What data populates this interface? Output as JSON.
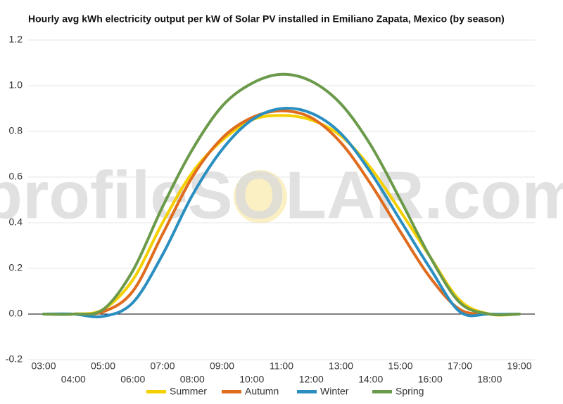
{
  "chart_data": {
    "type": "line",
    "title": "Hourly avg kWh electricity output per kW of Solar PV installed in Emiliano Zapata, Mexico (by season)",
    "watermark": "profileSOLAR.com",
    "categories": [
      "03:00",
      "04:00",
      "05:00",
      "06:00",
      "07:00",
      "08:00",
      "09:00",
      "10:00",
      "11:00",
      "12:00",
      "13:00",
      "14:00",
      "15:00",
      "16:00",
      "17:00",
      "18:00",
      "19:00"
    ],
    "series": [
      {
        "name": "Summer",
        "color": "#f5d000",
        "values": [
          0,
          0,
          0.02,
          0.15,
          0.4,
          0.62,
          0.76,
          0.85,
          0.87,
          0.85,
          0.78,
          0.64,
          0.45,
          0.25,
          0.06,
          0,
          0
        ]
      },
      {
        "name": "Autumn",
        "color": "#e06c1e",
        "values": [
          0,
          0,
          0.01,
          0.1,
          0.35,
          0.6,
          0.77,
          0.86,
          0.89,
          0.86,
          0.75,
          0.57,
          0.36,
          0.16,
          0.02,
          0,
          0
        ]
      },
      {
        "name": "Winter",
        "color": "#2a8fc0",
        "values": [
          0,
          0,
          -0.01,
          0.05,
          0.26,
          0.52,
          0.72,
          0.85,
          0.9,
          0.88,
          0.79,
          0.62,
          0.41,
          0.2,
          0.01,
          0,
          0
        ]
      },
      {
        "name": "Spring",
        "color": "#6b9a4a",
        "values": [
          0,
          0,
          0.02,
          0.19,
          0.47,
          0.72,
          0.91,
          1.01,
          1.05,
          1.02,
          0.92,
          0.74,
          0.5,
          0.25,
          0.05,
          0,
          0
        ]
      }
    ],
    "ylim": [
      -0.2,
      1.2
    ],
    "yticks": [
      -0.2,
      0,
      0.2,
      0.4,
      0.6,
      0.8,
      1.0,
      1.2
    ],
    "grid": true
  }
}
